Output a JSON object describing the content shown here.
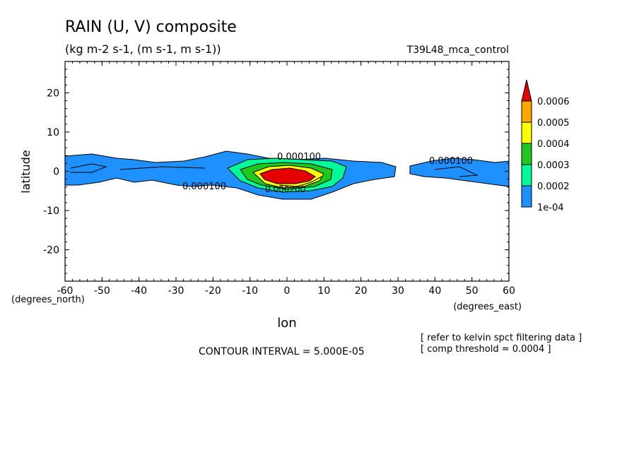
{
  "chart_data": {
    "type": "heatmap",
    "title": "RAIN (U, V) composite",
    "subtitle": "(kg m-2 s-1, (m s-1, m s-1))",
    "run_label": "T39L48_mca_control",
    "xlabel": "lon",
    "ylabel": "latitude",
    "x_units": "(degrees_east)",
    "y_units": "(degrees_north)",
    "xlim": [
      -60,
      60
    ],
    "ylim": [
      -28,
      28
    ],
    "x_ticks": [
      "-60",
      "-50",
      "-40",
      "-30",
      "-20",
      "-10",
      "0",
      "10",
      "20",
      "30",
      "40",
      "50",
      "60"
    ],
    "y_ticks": [
      "20",
      "10",
      "0",
      "-10",
      "-20"
    ],
    "colorbar": {
      "levels": [
        "1e-04",
        "0.0002",
        "0.0003",
        "0.0004",
        "0.0005",
        "0.0006"
      ],
      "colors": [
        "#1e90ff",
        "#00fa9a",
        "#1ec81e",
        "#ffff00",
        "#ffa500",
        "#e60000"
      ]
    },
    "contour_labels": [
      "0.000100",
      "0.000100",
      "0.000100",
      "0.000200"
    ],
    "regions": [
      {
        "level": "1e-04",
        "lon_range": [
          -60,
          28
        ],
        "lat_range": [
          -7,
          5
        ]
      },
      {
        "level": "1e-04",
        "lon_range": [
          33,
          60
        ],
        "lat_range": [
          -4,
          4
        ]
      },
      {
        "level": "0.0002",
        "lon_range": [
          -15,
          15
        ],
        "lat_range": [
          -5,
          3
        ]
      },
      {
        "level": "0.0003",
        "lon_range": [
          -10,
          10
        ],
        "lat_range": [
          -4,
          2
        ]
      },
      {
        "level": "0.0004",
        "lon_range": [
          -7,
          7
        ],
        "lat_range": [
          -3.5,
          1.5
        ]
      },
      {
        "level": "0.0006",
        "lon_range": [
          -6,
          5
        ],
        "lat_range": [
          -3,
          0.5
        ]
      }
    ],
    "footer": {
      "contour_interval": "CONTOUR INTERVAL = 5.000E-05",
      "note1": "[ refer to kelvin spct filtering data ]",
      "note2": "[ comp threshold = 0.0004 ]"
    }
  }
}
